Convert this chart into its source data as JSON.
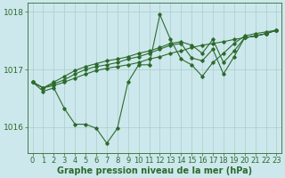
{
  "xlabel": "Graphe pression niveau de la mer (hPa)",
  "background_color": "#cce8ec",
  "grid_color": "#aacccc",
  "line_color": "#2d6a2d",
  "ylim": [
    1015.55,
    1018.15
  ],
  "xlim": [
    -0.5,
    23.5
  ],
  "yticks": [
    1016,
    1017,
    1018
  ],
  "xticks": [
    0,
    1,
    2,
    3,
    4,
    5,
    6,
    7,
    8,
    9,
    10,
    11,
    12,
    13,
    14,
    15,
    16,
    17,
    18,
    19,
    20,
    21,
    22,
    23
  ],
  "series": [
    {
      "x": [
        0,
        1,
        2,
        3,
        4,
        5,
        6,
        7,
        8,
        9,
        10,
        11,
        12,
        13,
        14,
        15,
        16,
        17,
        18,
        19,
        20,
        21,
        22,
        23
      ],
      "y": [
        1016.78,
        1016.62,
        1016.68,
        1016.32,
        1016.05,
        1016.05,
        1015.98,
        1015.72,
        1015.98,
        1016.78,
        1017.08,
        1017.08,
        1017.95,
        1017.52,
        1017.18,
        1017.08,
        1016.88,
        1017.12,
        1017.28,
        1017.45,
        1017.58,
        1017.62,
        1017.65,
        1017.68
      ]
    },
    {
      "x": [
        0,
        1,
        2,
        3,
        4,
        5,
        6,
        7,
        8,
        9,
        10,
        11,
        12,
        13,
        14,
        15,
        16,
        17,
        18,
        19,
        20,
        21,
        22,
        23
      ],
      "y": [
        1016.78,
        1016.68,
        1016.72,
        1016.78,
        1016.85,
        1016.92,
        1016.98,
        1017.02,
        1017.05,
        1017.08,
        1017.12,
        1017.18,
        1017.22,
        1017.28,
        1017.32,
        1017.38,
        1017.42,
        1017.45,
        1017.48,
        1017.52,
        1017.55,
        1017.58,
        1017.62,
        1017.68
      ]
    },
    {
      "x": [
        0,
        1,
        2,
        3,
        4,
        5,
        6,
        7,
        8,
        9,
        10,
        11,
        12,
        13,
        14,
        15,
        16,
        17,
        18,
        19,
        20,
        21,
        22,
        23
      ],
      "y": [
        1016.78,
        1016.68,
        1016.75,
        1016.82,
        1016.92,
        1017.0,
        1017.05,
        1017.08,
        1017.12,
        1017.18,
        1017.22,
        1017.28,
        1017.35,
        1017.42,
        1017.45,
        1017.2,
        1017.15,
        1017.35,
        1016.92,
        1017.22,
        1017.55,
        1017.58,
        1017.62,
        1017.68
      ]
    },
    {
      "x": [
        0,
        1,
        2,
        3,
        4,
        5,
        6,
        7,
        8,
        9,
        10,
        11,
        12,
        13,
        14,
        15,
        16,
        17,
        18,
        19,
        20,
        21,
        22,
        23
      ],
      "y": [
        1016.78,
        1016.68,
        1016.78,
        1016.88,
        1016.98,
        1017.05,
        1017.1,
        1017.15,
        1017.18,
        1017.22,
        1017.28,
        1017.32,
        1017.38,
        1017.45,
        1017.48,
        1017.42,
        1017.28,
        1017.52,
        1017.12,
        1017.32,
        1017.55,
        1017.58,
        1017.62,
        1017.68
      ]
    }
  ],
  "marker_style": "D",
  "marker_size": 1.8,
  "linewidth": 0.8,
  "xlabel_fontsize": 7,
  "tick_fontsize": 6.0
}
